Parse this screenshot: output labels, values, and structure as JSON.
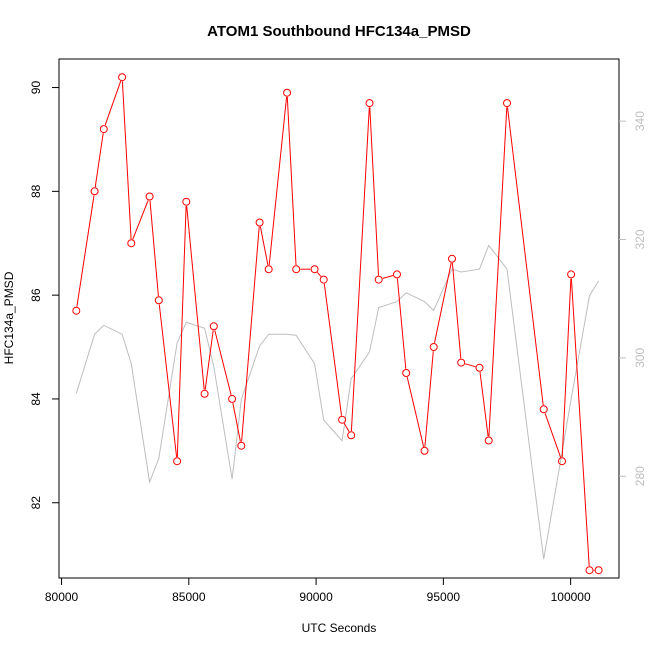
{
  "chart_data": {
    "type": "line",
    "title": "ATOM1 Southbound HFC134a_PMSD",
    "xlabel": "UTC Seconds",
    "ylabel": "HFC134a_PMSD",
    "xlim": [
      79900,
      101900
    ],
    "ylim": [
      80.55,
      90.55
    ],
    "xticks": [
      80000,
      85000,
      90000,
      95000,
      100000
    ],
    "yticks": [
      82,
      84,
      86,
      88,
      90
    ],
    "y2lim": [
      262.8,
      350.5
    ],
    "y2ticks": [
      280,
      300,
      320,
      340
    ],
    "grid": false,
    "legend": "none",
    "series": [
      {
        "axis": "left",
        "style": "line+points",
        "color": "#ff0000",
        "x": [
          80580,
          81300,
          81660,
          82380,
          82740,
          83460,
          83820,
          84540,
          84900,
          85620,
          85980,
          86700,
          87060,
          87780,
          88140,
          88860,
          89220,
          89940,
          90300,
          91020,
          91380,
          92100,
          92460,
          93180,
          93540,
          94260,
          94620,
          95340,
          95700,
          96420,
          96780,
          97500,
          98940,
          99660,
          100020,
          100740,
          101100
        ],
        "y": [
          85.7,
          88.0,
          89.2,
          90.2,
          87.0,
          87.9,
          85.9,
          82.8,
          87.8,
          84.1,
          85.4,
          84.0,
          83.1,
          87.4,
          86.5,
          89.9,
          86.5,
          86.5,
          86.3,
          83.6,
          83.3,
          89.7,
          86.3,
          86.4,
          84.5,
          83.0,
          85.0,
          86.7,
          84.7,
          84.6,
          83.2,
          89.7,
          83.8,
          82.8,
          86.4,
          80.7,
          80.7
        ]
      },
      {
        "axis": "right",
        "style": "line",
        "color": "#bebebe",
        "x": [
          80580,
          81300,
          81660,
          82380,
          82740,
          83460,
          83820,
          84540,
          84900,
          85620,
          85980,
          86700,
          87060,
          87780,
          88140,
          88860,
          89220,
          89940,
          90300,
          91020,
          91380,
          92100,
          92460,
          93180,
          93540,
          94260,
          94620,
          95340,
          95700,
          96420,
          96780,
          97500,
          98940,
          99660,
          100020,
          100740,
          101100
        ],
        "y": [
          294,
          304,
          305.5,
          304,
          299,
          279,
          283,
          302.5,
          306,
          305,
          298.5,
          279.5,
          293,
          302,
          304,
          304,
          303.8,
          299,
          289.5,
          286,
          296.5,
          301,
          308.5,
          309.5,
          311,
          309.5,
          308,
          315,
          314.5,
          315,
          319,
          315,
          266,
          284,
          293,
          310.5,
          313
        ]
      }
    ]
  }
}
